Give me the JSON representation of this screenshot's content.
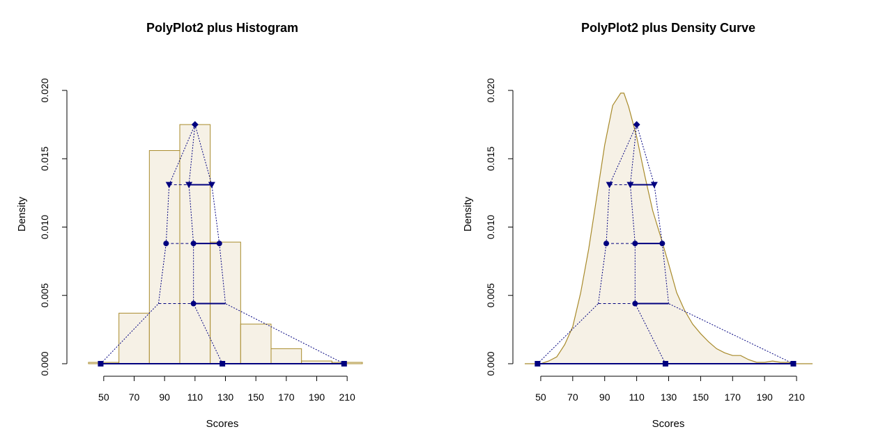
{
  "colors": {
    "histogram_stroke": "#a88a2a",
    "fill": "#f6f1e6",
    "density_stroke": "#a88a2a",
    "poly": "#00007f",
    "axis": "#000000"
  },
  "chart_data": [
    {
      "type": "bar",
      "title": "PolyPlot2 plus Histogram",
      "xlabel": "Scores",
      "ylabel": "Density",
      "xlim": [
        40,
        220
      ],
      "ylim": [
        0,
        0.02
      ],
      "x_ticks": [
        "50",
        "70",
        "90",
        "110",
        "130",
        "150",
        "170",
        "190",
        "210"
      ],
      "y_ticks": [
        "0.000",
        "0.005",
        "0.010",
        "0.015",
        "0.020"
      ],
      "histogram": {
        "bin_edges": [
          40,
          60,
          80,
          100,
          120,
          140,
          160,
          180,
          200,
          220
        ],
        "densities": [
          0.0001,
          0.0037,
          0.0156,
          0.0175,
          0.0089,
          0.0029,
          0.0011,
          0.0002,
          0.0001
        ]
      },
      "polyplot": {
        "baseline": [
          48,
          128,
          208
        ],
        "level1": {
          "y": 0.0044,
          "points": [
            86,
            109,
            130
          ]
        },
        "level2": {
          "y": 0.0088,
          "points": [
            91,
            109,
            126
          ]
        },
        "level3": {
          "y": 0.0131,
          "points": [
            93,
            106,
            121
          ]
        },
        "peak": {
          "x": 110,
          "y": 0.0175
        }
      }
    },
    {
      "type": "area",
      "title": "PolyPlot2 plus Density Curve",
      "xlabel": "Scores",
      "ylabel": "Density",
      "xlim": [
        40,
        220
      ],
      "ylim": [
        0,
        0.02
      ],
      "x_ticks": [
        "50",
        "70",
        "90",
        "110",
        "130",
        "150",
        "170",
        "190",
        "210"
      ],
      "y_ticks": [
        "0.000",
        "0.005",
        "0.010",
        "0.015",
        "0.020"
      ],
      "density": {
        "x": [
          40,
          50,
          55,
          60,
          65,
          70,
          75,
          80,
          85,
          90,
          95,
          100,
          102,
          105,
          110,
          115,
          120,
          125,
          130,
          135,
          140,
          145,
          150,
          155,
          160,
          165,
          170,
          175,
          180,
          185,
          190,
          195,
          200,
          205,
          210,
          215,
          220
        ],
        "y": [
          0.0,
          0.0,
          0.0002,
          0.0005,
          0.0014,
          0.0027,
          0.0052,
          0.0084,
          0.0122,
          0.016,
          0.0189,
          0.0198,
          0.0198,
          0.0188,
          0.0166,
          0.0138,
          0.0112,
          0.0093,
          0.0073,
          0.0052,
          0.0039,
          0.0029,
          0.0022,
          0.0016,
          0.0011,
          0.0008,
          0.0006,
          0.0006,
          0.0003,
          0.0001,
          0.0001,
          0.0002,
          0.0001,
          0.0001,
          0.0,
          0.0,
          0.0
        ]
      },
      "polyplot": {
        "baseline": [
          48,
          128,
          208
        ],
        "level1": {
          "y": 0.0044,
          "points": [
            86,
            109,
            130
          ]
        },
        "level2": {
          "y": 0.0088,
          "points": [
            91,
            109,
            126
          ]
        },
        "level3": {
          "y": 0.0131,
          "points": [
            93,
            106,
            121
          ]
        },
        "peak": {
          "x": 110,
          "y": 0.0175
        }
      }
    }
  ]
}
